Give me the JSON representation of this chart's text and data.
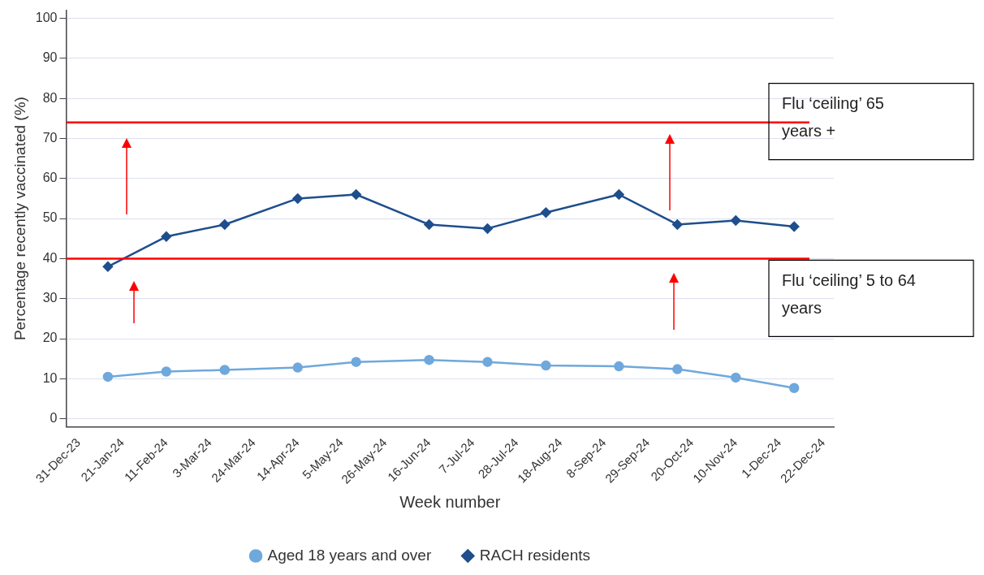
{
  "chart_data": {
    "type": "line",
    "xlabel": "Week number",
    "ylabel": "Percentage recently vaccinated (%)",
    "x": [
      "2024-01-14",
      "2024-02-11",
      "2024-03-10",
      "2024-04-14",
      "2024-05-12",
      "2024-06-16",
      "2024-07-14",
      "2024-08-11",
      "2024-09-15",
      "2024-10-13",
      "2024-11-10",
      "2024-12-08"
    ],
    "series": [
      {
        "name": "Aged 18 years and over",
        "color": "#6fa8dc",
        "marker": "circle",
        "values": [
          10.5,
          11.8,
          12.2,
          12.8,
          14.2,
          14.7,
          14.2,
          13.3,
          13.1,
          12.4,
          10.3,
          7.7
        ]
      },
      {
        "name": "RACH residents",
        "color": "#1f4e8c",
        "marker": "diamond",
        "values": [
          38,
          45.5,
          48.5,
          55,
          56,
          48.5,
          47.5,
          51.5,
          56,
          48.5,
          49.5,
          48
        ]
      }
    ],
    "xlim": [
      "2023-12-25",
      "2024-12-27"
    ],
    "xticks": [
      {
        "value": "2023-12-31",
        "label": "31-Dec-23"
      },
      {
        "value": "2024-01-21",
        "label": "21-Jan-24"
      },
      {
        "value": "2024-02-11",
        "label": "11-Feb-24"
      },
      {
        "value": "2024-03-03",
        "label": "3-Mar-24"
      },
      {
        "value": "2024-03-24",
        "label": "24-Mar-24"
      },
      {
        "value": "2024-04-14",
        "label": "14-Apr-24"
      },
      {
        "value": "2024-05-05",
        "label": "5-May-24"
      },
      {
        "value": "2024-05-26",
        "label": "26-May-24"
      },
      {
        "value": "2024-06-16",
        "label": "16-Jun-24"
      },
      {
        "value": "2024-07-07",
        "label": "7-Jul-24"
      },
      {
        "value": "2024-07-28",
        "label": "28-Jul-24"
      },
      {
        "value": "2024-08-18",
        "label": "18-Aug-24"
      },
      {
        "value": "2024-09-08",
        "label": "8-Sep-24"
      },
      {
        "value": "2024-09-29",
        "label": "29-Sep-24"
      },
      {
        "value": "2024-10-20",
        "label": "20-Oct-24"
      },
      {
        "value": "2024-11-10",
        "label": "10-Nov-24"
      },
      {
        "value": "2024-12-01",
        "label": "1-Dec-24"
      },
      {
        "value": "2024-12-22",
        "label": "22-Dec-24"
      }
    ],
    "ylim": [
      -2,
      102
    ],
    "yticks": [
      0,
      10,
      20,
      30,
      40,
      50,
      60,
      70,
      80,
      90,
      100
    ],
    "grid": "y",
    "legend": "bottom",
    "ref_lines": [
      {
        "axis": "y",
        "value": 74,
        "label": "Flu ‘ceiling’ 65 years +",
        "color": "#ff0000"
      },
      {
        "axis": "y",
        "value": 40,
        "label": "Flu ‘ceiling’ 5 to 64 years",
        "color": "#ff0000"
      }
    ]
  }
}
